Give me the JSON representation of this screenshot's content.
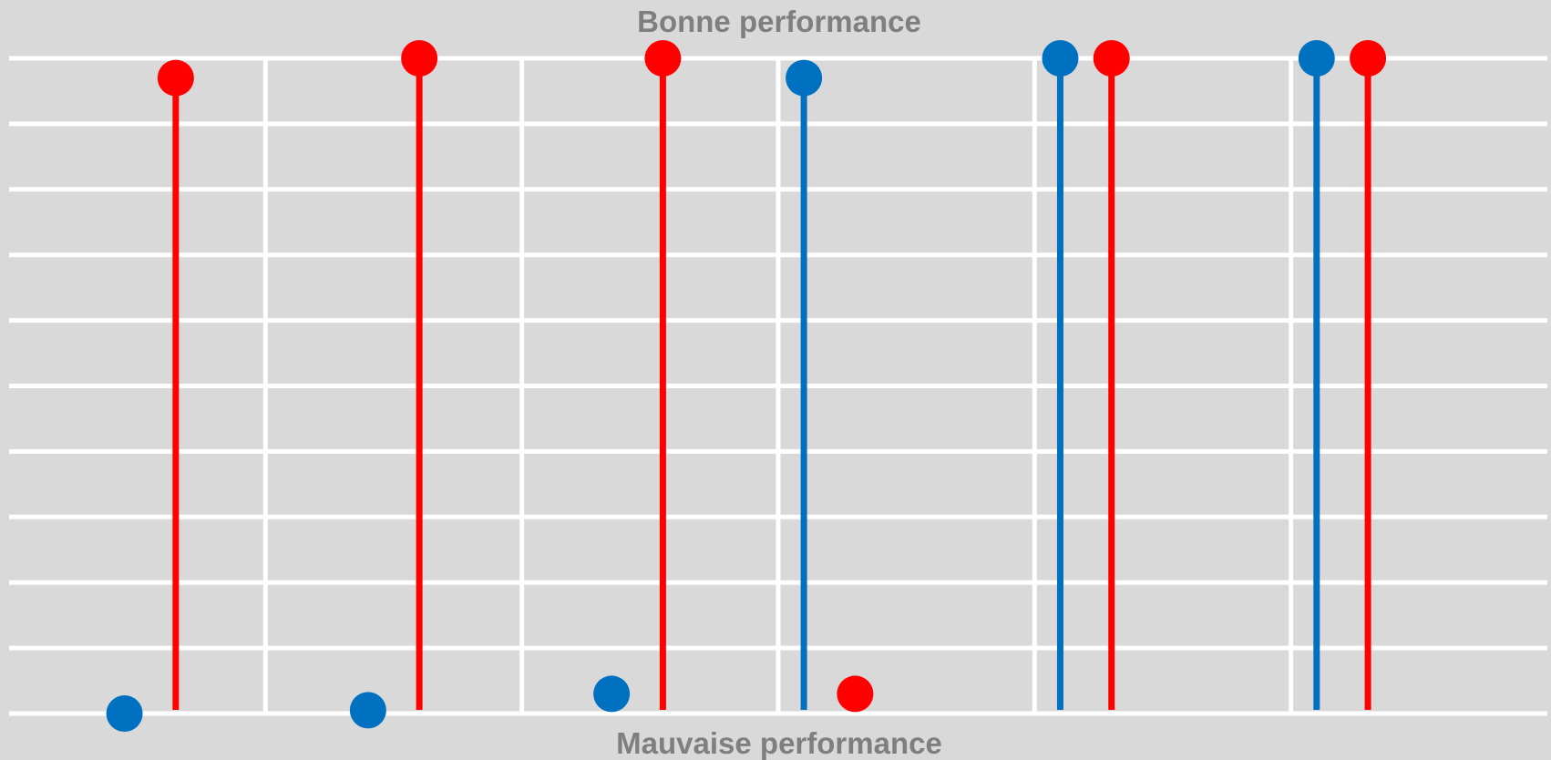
{
  "chart_data": {
    "type": "scatter",
    "title": "",
    "top_label": "Bonne performance",
    "bottom_label": "Mauvaise performance",
    "ylim": [
      0,
      10
    ],
    "grid": true,
    "xlim": [
      0,
      6
    ],
    "series": [
      {
        "color": "#0070c0",
        "points": [
          {
            "x": 0.45,
            "y": 0.0,
            "stem": false
          },
          {
            "x": 1.4,
            "y": 0.05,
            "stem": false
          },
          {
            "x": 2.35,
            "y": 0.3,
            "stem": false
          },
          {
            "x": 3.1,
            "y": 9.7,
            "stem": true
          },
          {
            "x": 4.1,
            "y": 10.0,
            "stem": true
          },
          {
            "x": 5.1,
            "y": 10.0,
            "stem": true
          }
        ]
      },
      {
        "color": "#ff0000",
        "points": [
          {
            "x": 0.65,
            "y": 9.7,
            "stem": true
          },
          {
            "x": 1.6,
            "y": 10.0,
            "stem": true
          },
          {
            "x": 2.55,
            "y": 10.0,
            "stem": true
          },
          {
            "x": 3.3,
            "y": 0.3,
            "stem": false
          },
          {
            "x": 4.3,
            "y": 10.0,
            "stem": true
          },
          {
            "x": 5.3,
            "y": 10.0,
            "stem": true
          }
        ]
      }
    ]
  }
}
